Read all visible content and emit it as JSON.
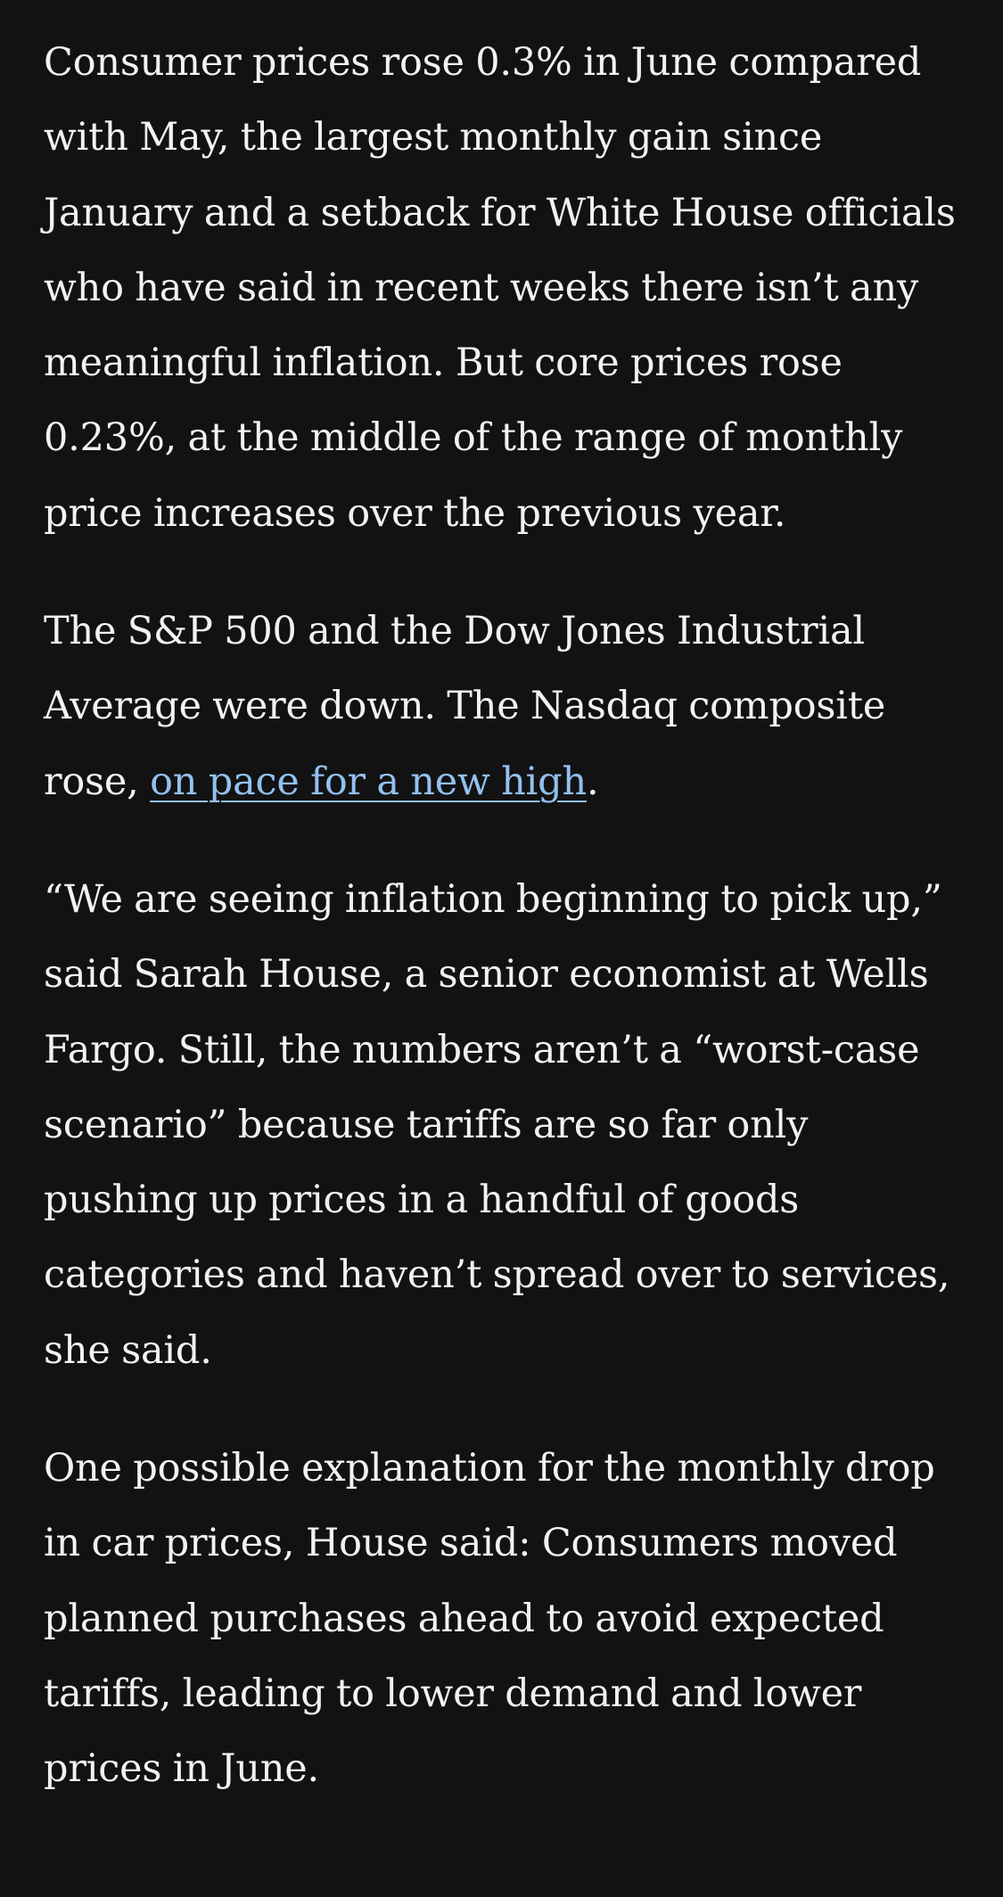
{
  "article": {
    "paragraphs": [
      {
        "text": "Consumer prices rose 0.3% in June compared with May, the largest monthly gain since January and a setback for White House officials who have said in recent weeks there isn’t any meaningful inflation. But core prices rose 0.23%, at the middle of the range of monthly price increases over the previous year."
      },
      {
        "before_link": "The S&P 500 and the Dow Jones Industrial Average were down. The Nasdaq composite rose, ",
        "link_text": "on pace for a new high",
        "after_link": "."
      },
      {
        "text": "“We are seeing inflation beginning to pick up,” said Sarah House, a senior economist at Wells Fargo. Still, the numbers aren’t a “worst-case scenario” because tariffs are so far only pushing up prices in a handful of goods categories and haven’t spread over to services, she said."
      },
      {
        "text": "One possible explanation for the monthly drop in car prices, House said: Consumers moved planned purchases ahead to avoid expected tariffs, leading to lower demand and lower prices in June."
      }
    ]
  },
  "colors": {
    "background": "#121212",
    "text": "#f2f2f2",
    "link": "#93c0f2"
  }
}
